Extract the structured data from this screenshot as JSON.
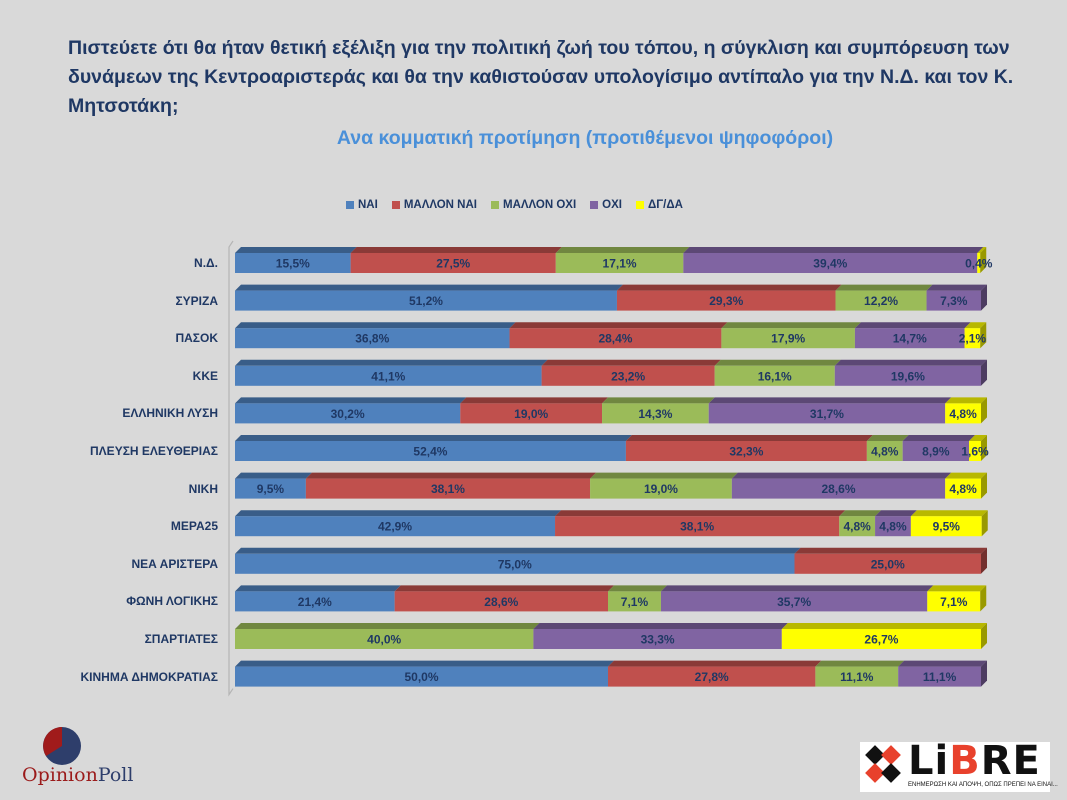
{
  "title": "Πιστεύετε ότι θα ήταν θετική εξέλιξη για την πολιτική ζωή του τόπου, η σύγκλιση και συμπόρευση των δυνάμεων της Κεντροαριστεράς και θα την καθιστούσαν υπολογίσιμο αντίπαλο για την Ν.Δ. και τον Κ. Μητσοτάκη;",
  "subtitle": "Ανα κομματική προτίμηση (προτιθέμενοι ψηφοφόροι)",
  "logos": {
    "opinion_poll": {
      "part1": "Opinion",
      "part2": "Poll"
    },
    "libre": {
      "word_a": "Li",
      "word_b": "B",
      "word_c": "RE",
      "tagline": "ΕΝΗΜΕΡΩΣΗ ΚΑΙ ΑΠΟΨΗ, ΟΠΩΣ ΠΡΕΠΕΙ ΝΑ ΕΙΝΑΙ..."
    }
  },
  "chart_data": {
    "type": "bar",
    "orientation": "horizontal",
    "stacked": "100%",
    "three_d": true,
    "legend_position": "top",
    "grid": false,
    "xlim": [
      0,
      100
    ],
    "unit": "%",
    "categories": [
      "Ν.Δ.",
      "ΣΥΡΙΖΑ",
      "ΠΑΣΟΚ",
      "ΚΚΕ",
      "ΕΛΛΗΝΙΚΗ ΛΥΣΗ",
      "ΠΛΕΥΣΗ ΕΛΕΥΘΕΡΙΑΣ",
      "ΝΙΚΗ",
      "ΜΕΡΑ25",
      "ΝΕΑ ΑΡΙΣΤΕΡΑ",
      "ΦΩΝΗ ΛΟΓΙΚΗΣ",
      "ΣΠΑΡΤΙΑΤΕΣ",
      "ΚΙΝΗΜΑ ΔΗΜΟΚΡΑΤΙΑΣ"
    ],
    "series": [
      {
        "name": "ΝΑΙ",
        "color": "#4f81bd",
        "values": [
          15.5,
          51.2,
          36.8,
          41.1,
          30.2,
          52.4,
          9.5,
          42.9,
          75.0,
          21.4,
          0,
          50.0
        ]
      },
      {
        "name": "ΜΑΛΛΟΝ ΝΑΙ",
        "color": "#c0504d",
        "values": [
          27.5,
          29.3,
          28.4,
          23.2,
          19.0,
          32.3,
          38.1,
          38.1,
          25.0,
          28.6,
          0,
          27.8
        ]
      },
      {
        "name": "ΜΑΛΛΟΝ ΟΧΙ",
        "color": "#9bbb59",
        "values": [
          17.1,
          12.2,
          17.9,
          16.1,
          14.3,
          4.8,
          19.0,
          4.8,
          0,
          7.1,
          40.0,
          11.1
        ]
      },
      {
        "name": "ΟΧΙ",
        "color": "#8064a2",
        "values": [
          39.4,
          7.3,
          14.7,
          19.6,
          31.7,
          8.9,
          28.6,
          4.8,
          0,
          35.7,
          33.3,
          11.1
        ]
      },
      {
        "name": "ΔΓ/ΔΑ",
        "color": "#ffff00",
        "values": [
          0.4,
          0,
          2.1,
          0,
          4.8,
          1.6,
          4.8,
          9.5,
          0,
          7.1,
          26.7,
          0
        ]
      }
    ]
  }
}
